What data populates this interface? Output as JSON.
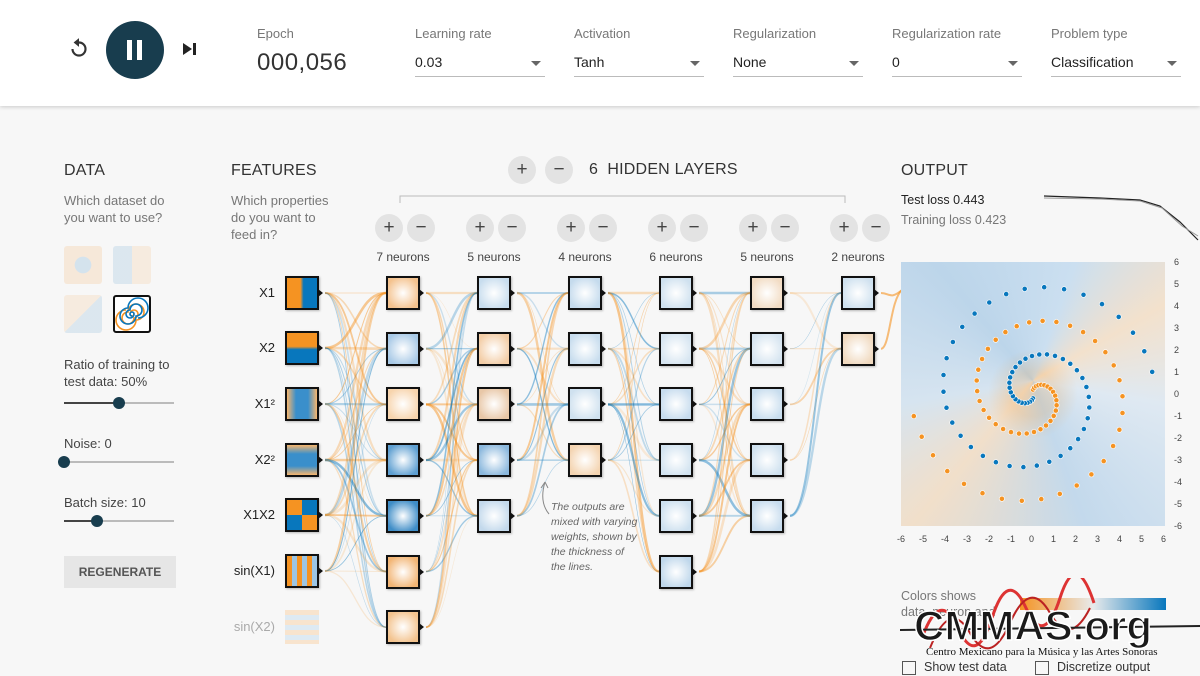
{
  "toolbar": {
    "epoch_label": "Epoch",
    "epoch_value": "000,056",
    "learning_rate": {
      "label": "Learning rate",
      "value": "0.03"
    },
    "activation": {
      "label": "Activation",
      "value": "Tanh"
    },
    "regularization": {
      "label": "Regularization",
      "value": "None"
    },
    "regularization_rate": {
      "label": "Regularization rate",
      "value": "0"
    },
    "problem_type": {
      "label": "Problem type",
      "value": "Classification"
    }
  },
  "data_panel": {
    "title": "DATA",
    "hint": "Which dataset do you want to use?",
    "datasets": [
      "circle",
      "xor",
      "gaussian",
      "spiral"
    ],
    "selected_dataset": "spiral",
    "ratio_label": "Ratio of training to test data:",
    "ratio_value": "50%",
    "ratio_fraction": 0.5,
    "noise_label": "Noise:",
    "noise_value": "0",
    "noise_fraction": 0,
    "batch_label": "Batch size:",
    "batch_value": "10",
    "batch_fraction": 0.3,
    "regenerate": "REGENERATE"
  },
  "features": {
    "title": "FEATURES",
    "hint": "Which properties do you want to feed in?",
    "items": [
      "X1",
      "X2",
      "X1²",
      "X2²",
      "X1X2",
      "sin(X1)",
      "sin(X2)"
    ]
  },
  "network": {
    "hidden_layers_count": "6",
    "hidden_layers_label": "HIDDEN LAYERS",
    "add_layer": "+",
    "remove_layer": "−",
    "layers": [
      {
        "neurons_label": "7 neurons",
        "count": 7
      },
      {
        "neurons_label": "5 neurons",
        "count": 5
      },
      {
        "neurons_label": "4 neurons",
        "count": 4
      },
      {
        "neurons_label": "6 neurons",
        "count": 6
      },
      {
        "neurons_label": "5 neurons",
        "count": 5
      },
      {
        "neurons_label": "2 neurons",
        "count": 2
      }
    ],
    "annotation": "The outputs are mixed with varying weights, shown by the thickness of the lines."
  },
  "output": {
    "title": "OUTPUT",
    "test_loss_label": "Test loss",
    "test_loss": "0.443",
    "training_loss_label": "Training loss",
    "training_loss": "0.423",
    "axis_ticks": [
      "-6",
      "-5",
      "-4",
      "-3",
      "-2",
      "-1",
      "0",
      "1",
      "2",
      "3",
      "4",
      "5",
      "6"
    ],
    "colors_text": "Colors shows data, neuron and weight values.",
    "show_test_data": "Show test data",
    "discretize_output": "Discretize output"
  },
  "colors": {
    "orange": "#f59322",
    "blue": "#0877bd",
    "dark": "#183d4e"
  },
  "watermark": {
    "brand": "CMMAS.org",
    "tagline": "Centro Mexicano para la Música y las Artes Sonoras"
  }
}
